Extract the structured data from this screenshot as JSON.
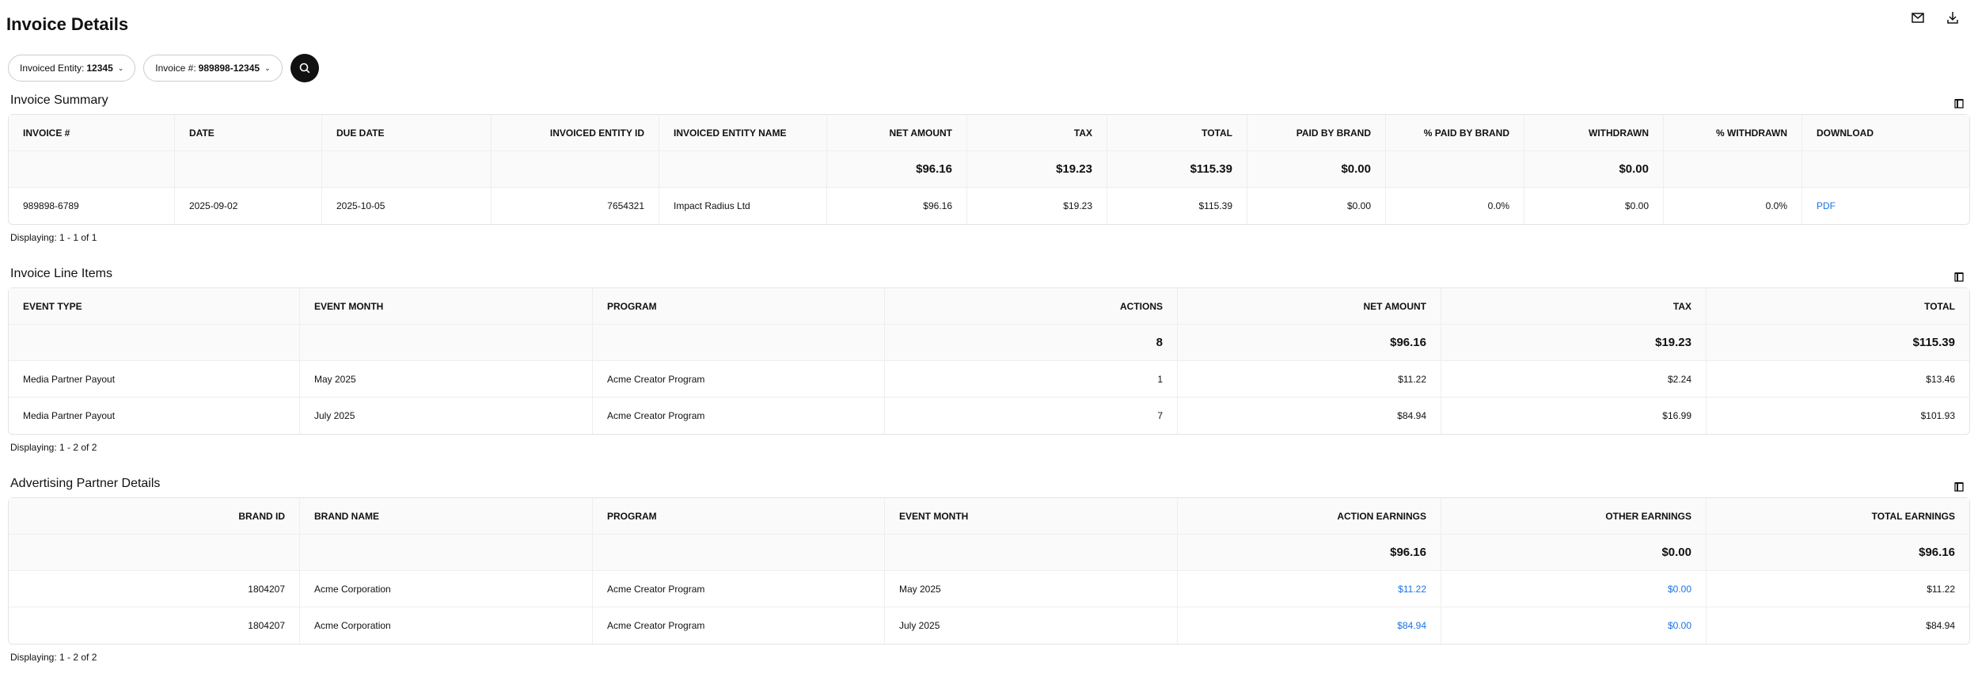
{
  "header": {
    "title": "Invoice Details",
    "icons": [
      "mail-icon",
      "download-icon"
    ]
  },
  "filters": {
    "entity_label": "Invoiced Entity:",
    "entity_value": "12345",
    "invoice_label": "Invoice #:",
    "invoice_value": "989898-12345"
  },
  "colors": {
    "link": "#1a73e8",
    "search_button": "#111111"
  },
  "sections": [
    {
      "title": "Invoice Summary",
      "displaying": "Displaying: 1 - 1 of 1",
      "columns": [
        "INVOICE #",
        "DATE",
        "DUE DATE",
        "INVOICED ENTITY ID",
        "INVOICED ENTITY NAME",
        "NET AMOUNT",
        "TAX",
        "TOTAL",
        "PAID BY BRAND",
        "% PAID BY BRAND",
        "WITHDRAWN",
        "% WITHDRAWN",
        "DOWNLOAD"
      ],
      "align": [
        "l",
        "l",
        "l",
        "r",
        "l",
        "r",
        "r",
        "r",
        "r",
        "r",
        "r",
        "r",
        "l"
      ],
      "totals": [
        "",
        "",
        "",
        "",
        "",
        "$96.16",
        "$19.23",
        "$115.39",
        "$0.00",
        "",
        "$0.00",
        "",
        ""
      ],
      "rows": [
        [
          "989898-6789",
          "2025-09-02",
          "2025-10-05",
          "7654321",
          "Impact Radius Ltd",
          "$96.16",
          "$19.23",
          "$115.39",
          "$0.00",
          "0.0%",
          "$0.00",
          "0.0%",
          "PDF"
        ]
      ],
      "links": [
        12
      ]
    },
    {
      "title": "Invoice Line Items",
      "displaying": "Displaying: 1 - 2 of 2",
      "columns": [
        "EVENT TYPE",
        "EVENT MONTH",
        "PROGRAM",
        "ACTIONS",
        "NET AMOUNT",
        "TAX",
        "TOTAL"
      ],
      "align": [
        "l",
        "l",
        "l",
        "r",
        "r",
        "r",
        "r"
      ],
      "totals": [
        "",
        "",
        "",
        "8",
        "$96.16",
        "$19.23",
        "$115.39"
      ],
      "rows": [
        [
          "Media Partner Payout",
          "May 2025",
          "Acme Creator Program",
          "1",
          "$11.22",
          "$2.24",
          "$13.46"
        ],
        [
          "Media Partner Payout",
          "July 2025",
          "Acme Creator Program",
          "7",
          "$84.94",
          "$16.99",
          "$101.93"
        ]
      ],
      "links": []
    },
    {
      "title": "Advertising Partner Details",
      "displaying": "Displaying: 1 - 2 of 2",
      "columns": [
        "BRAND ID",
        "BRAND NAME",
        "PROGRAM",
        "EVENT MONTH",
        "ACTION EARNINGS",
        "OTHER EARNINGS",
        "TOTAL EARNINGS"
      ],
      "align": [
        "r",
        "l",
        "l",
        "l",
        "r",
        "r",
        "r"
      ],
      "totals": [
        "",
        "",
        "",
        "",
        "$96.16",
        "$0.00",
        "$96.16"
      ],
      "rows": [
        [
          "1804207",
          "Acme Corporation",
          "Acme Creator Program",
          "May 2025",
          "$11.22",
          "$0.00",
          "$11.22"
        ],
        [
          "1804207",
          "Acme Corporation",
          "Acme Creator Program",
          "July 2025",
          "$84.94",
          "$0.00",
          "$84.94"
        ]
      ],
      "links": [
        4,
        5
      ]
    }
  ]
}
